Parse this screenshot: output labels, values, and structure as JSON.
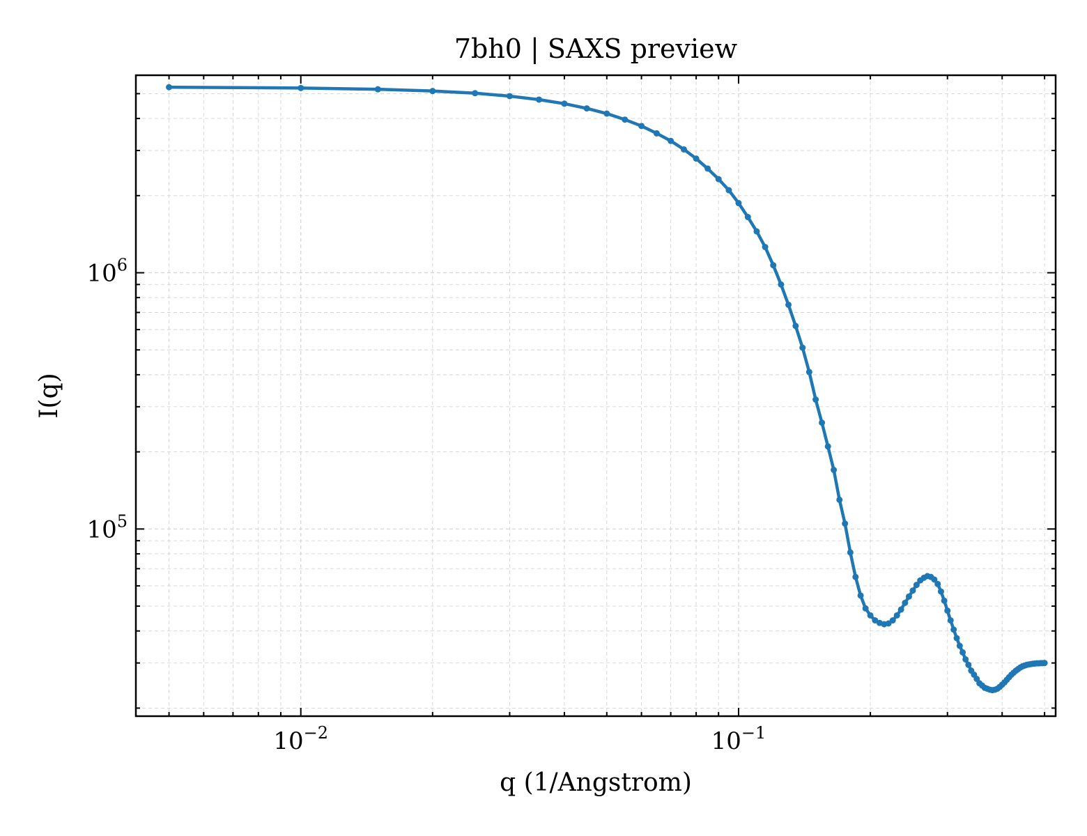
{
  "colors": {
    "series": "#1f77b4",
    "grid": "#d3d3d3",
    "axis": "#000000",
    "background": "#ffffff"
  },
  "chart_data": {
    "type": "line",
    "title": "7bh0 | SAXS preview",
    "xlabel": "q (1/Angstrom)",
    "ylabel": "I(q)",
    "xscale": "log",
    "yscale": "log",
    "xlim": [
      0.0042,
      0.53
    ],
    "ylim": [
      18600,
      5900000
    ],
    "grid": true,
    "grid_minor": true,
    "xticks": [
      {
        "value": 0.01,
        "base": "10",
        "exp": "−2"
      },
      {
        "value": 0.1,
        "base": "10",
        "exp": "−1"
      }
    ],
    "yticks": [
      {
        "value": 100000,
        "base": "10",
        "exp": "5"
      },
      {
        "value": 1000000,
        "base": "10",
        "exp": "6"
      }
    ],
    "series": [
      {
        "marker": "dot",
        "x": [
          0.005,
          0.01,
          0.015,
          0.02,
          0.025,
          0.03,
          0.035,
          0.04,
          0.045,
          0.05,
          0.055,
          0.06,
          0.065,
          0.07,
          0.075,
          0.08,
          0.085,
          0.09,
          0.095,
          0.1,
          0.105,
          0.11,
          0.115,
          0.12,
          0.125,
          0.13,
          0.135,
          0.14,
          0.145,
          0.15,
          0.155,
          0.16,
          0.165,
          0.17,
          0.175,
          0.18,
          0.185,
          0.19,
          0.195,
          0.2,
          0.205,
          0.21,
          0.215,
          0.22,
          0.225,
          0.23,
          0.235,
          0.24,
          0.245,
          0.25,
          0.255,
          0.26,
          0.265,
          0.27,
          0.275,
          0.28,
          0.285,
          0.29,
          0.295,
          0.3,
          0.305,
          0.31,
          0.315,
          0.32,
          0.325,
          0.33,
          0.335,
          0.34,
          0.345,
          0.35,
          0.355,
          0.36,
          0.365,
          0.37,
          0.375,
          0.38,
          0.385,
          0.39,
          0.395,
          0.4,
          0.405,
          0.41,
          0.415,
          0.42,
          0.425,
          0.43,
          0.435,
          0.44,
          0.445,
          0.45,
          0.455,
          0.46,
          0.465,
          0.47,
          0.475,
          0.48,
          0.485,
          0.49,
          0.495,
          0.5
        ],
        "y": [
          5300000,
          5260000,
          5200000,
          5120000,
          5020000,
          4890000,
          4740000,
          4570000,
          4380000,
          4180000,
          3960000,
          3740000,
          3500000,
          3270000,
          3030000,
          2790000,
          2550000,
          2320000,
          2100000,
          1870000,
          1650000,
          1450000,
          1260000,
          1070000,
          900000,
          750000,
          620000,
          510000,
          410000,
          320000,
          260000,
          210000,
          170000,
          130000,
          105000,
          81000,
          65000,
          55000,
          49000,
          46000,
          44000,
          43000,
          42500,
          42800,
          44000,
          46000,
          48500,
          51500,
          54500,
          57500,
          60500,
          63000,
          64500,
          65500,
          65000,
          63500,
          61000,
          57000,
          52500,
          48000,
          44000,
          40500,
          37500,
          35000,
          33000,
          31000,
          29500,
          28000,
          27000,
          26000,
          25000,
          24500,
          24000,
          23800,
          23600,
          23500,
          23600,
          23800,
          24200,
          24700,
          25200,
          25800,
          26400,
          27000,
          27500,
          28000,
          28400,
          28800,
          29100,
          29300,
          29500,
          29600,
          29700,
          29800,
          29850,
          29900,
          29900,
          29950,
          29950,
          30000
        ]
      }
    ]
  }
}
